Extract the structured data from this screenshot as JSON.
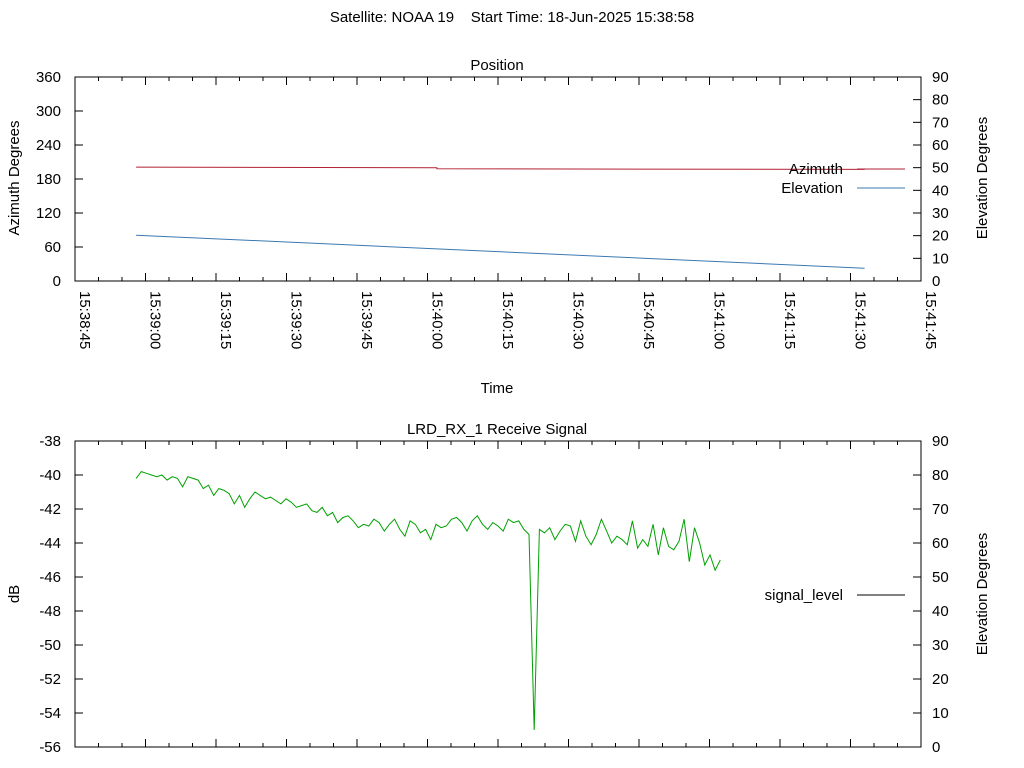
{
  "figure": {
    "title": "Satellite: NOAA 19    Start Time: 18-Jun-2025 15:38:58"
  },
  "chart_data": [
    {
      "type": "line",
      "title": "Position",
      "xlabel": "Time",
      "ylabel": "Azimuth Degrees",
      "y2label": "Elevation Degrees",
      "xlim": [
        "15:38:45",
        "15:41:45"
      ],
      "x_ticks": [
        "15:38:45",
        "15:39:00",
        "15:39:15",
        "15:39:30",
        "15:39:45",
        "15:40:00",
        "15:40:15",
        "15:40:30",
        "15:40:45",
        "15:41:00",
        "15:41:15",
        "15:41:30",
        "15:41:45"
      ],
      "ylim": [
        0,
        360
      ],
      "y_ticks": [
        0,
        60,
        120,
        180,
        240,
        300,
        360
      ],
      "y2lim": [
        0,
        90
      ],
      "y2_ticks": [
        0,
        10,
        20,
        30,
        40,
        50,
        60,
        70,
        80,
        90
      ],
      "legend_position": "right",
      "grid": false,
      "series": [
        {
          "name": "Azimuth",
          "color": "#b22234",
          "axis": "left",
          "x": [
            "15:38:58",
            "15:40:02",
            "15:40:02",
            "15:41:33"
          ],
          "values": [
            201,
            200,
            198,
            197
          ]
        },
        {
          "name": "Elevation",
          "color": "#3a78b0",
          "axis": "right",
          "x": [
            "15:38:58",
            "15:41:33"
          ],
          "values": [
            20.2,
            5.6
          ]
        }
      ]
    },
    {
      "type": "line",
      "title": "LRD_RX_1 Receive Signal",
      "xlabel": "",
      "ylabel": "dB",
      "y2label": "Elevation Degrees",
      "xlim": [
        "15:38:45",
        "15:41:45"
      ],
      "ylim": [
        -56,
        -38
      ],
      "y_ticks": [
        -56,
        -54,
        -52,
        -50,
        -48,
        -46,
        -44,
        -42,
        -40,
        -38
      ],
      "y2lim": [
        0,
        90
      ],
      "y2_ticks": [
        0,
        10,
        20,
        30,
        40,
        50,
        60,
        70,
        80,
        90
      ],
      "legend_position": "right",
      "grid": false,
      "series": [
        {
          "name": "signal_level",
          "color": "#00a000",
          "axis": "left",
          "x_start": "15:38:58",
          "x_step_seconds": 1.1,
          "values": [
            -40.2,
            -39.8,
            -39.9,
            -40.0,
            -40.1,
            -40.0,
            -40.3,
            -40.1,
            -40.2,
            -40.7,
            -40.1,
            -40.2,
            -40.3,
            -40.8,
            -40.6,
            -41.2,
            -40.8,
            -40.9,
            -41.1,
            -41.7,
            -41.2,
            -41.9,
            -41.4,
            -41.0,
            -41.2,
            -41.4,
            -41.3,
            -41.5,
            -41.7,
            -41.4,
            -41.6,
            -41.9,
            -41.8,
            -41.7,
            -42.1,
            -42.2,
            -41.9,
            -42.4,
            -42.2,
            -42.8,
            -42.5,
            -42.4,
            -42.7,
            -43.1,
            -42.9,
            -43.0,
            -42.6,
            -42.8,
            -43.3,
            -42.9,
            -42.6,
            -43.2,
            -43.6,
            -42.7,
            -42.9,
            -43.4,
            -43.2,
            -43.8,
            -42.9,
            -43.1,
            -43.0,
            -42.6,
            -42.5,
            -42.8,
            -43.3,
            -42.7,
            -42.4,
            -42.9,
            -43.2,
            -42.8,
            -43.0,
            -43.3,
            -42.6,
            -42.8,
            -42.7,
            -43.2,
            -43.5,
            -55.0,
            -43.2,
            -43.4,
            -43.1,
            -43.8,
            -43.3,
            -42.9,
            -43.0,
            -43.9,
            -42.7,
            -43.6,
            -44.1,
            -43.5,
            -42.6,
            -43.3,
            -44.0,
            -43.6,
            -43.8,
            -44.1,
            -42.7,
            -44.3,
            -43.8,
            -44.2,
            -42.9,
            -44.7,
            -43.1,
            -44.2,
            -44.4,
            -43.9,
            -42.6,
            -45.1,
            -43.1,
            -44.0,
            -45.3,
            -44.7,
            -45.6,
            -45.0
          ]
        }
      ]
    }
  ]
}
